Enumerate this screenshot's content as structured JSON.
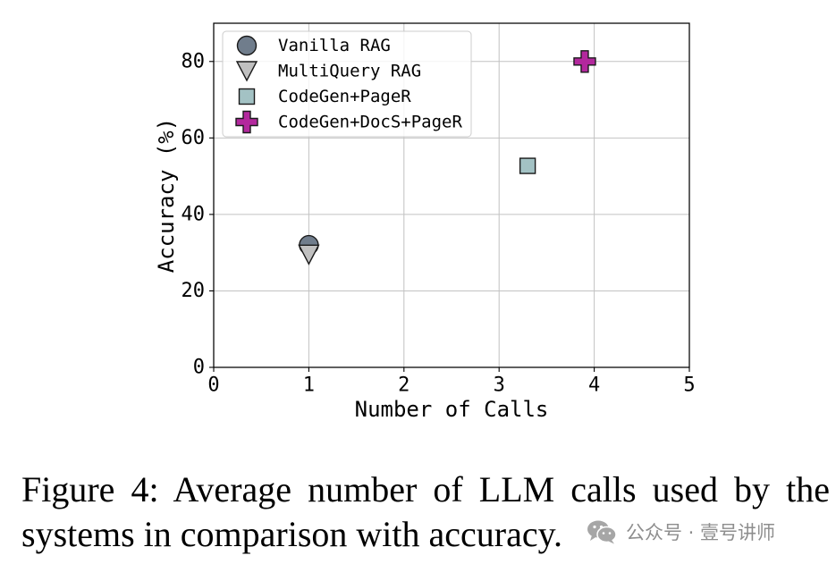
{
  "chart_data": {
    "type": "scatter",
    "xlabel": "Number of Calls",
    "ylabel": "Accuracy (%)",
    "xlim": [
      0,
      5
    ],
    "ylim": [
      0,
      90
    ],
    "xticks": [
      0,
      1,
      2,
      3,
      4,
      5
    ],
    "yticks": [
      0,
      20,
      40,
      60,
      80
    ],
    "grid": true,
    "legend_position": "upper-left",
    "series": [
      {
        "name": "Vanilla RAG",
        "marker": "circle",
        "color": "#707d8c",
        "points": [
          {
            "x": 1,
            "y": 32
          }
        ]
      },
      {
        "name": "MultiQuery RAG",
        "marker": "triangle-down",
        "color": "#c0c0c0",
        "points": [
          {
            "x": 1,
            "y": 29.5
          }
        ]
      },
      {
        "name": "CodeGen+PageR",
        "marker": "square",
        "color": "#a3c2c4",
        "points": [
          {
            "x": 3.3,
            "y": 52.7
          }
        ]
      },
      {
        "name": "CodeGen+DocS+PageR",
        "marker": "plus",
        "color": "#b3289d",
        "points": [
          {
            "x": 3.9,
            "y": 80
          }
        ]
      }
    ]
  },
  "caption": {
    "label": "Figure 4:",
    "text": "Average number of LLM calls used by the systems in comparison with accuracy."
  },
  "watermark": {
    "icon": "wechat-icon",
    "text": "公众号 · 壹号讲师"
  }
}
